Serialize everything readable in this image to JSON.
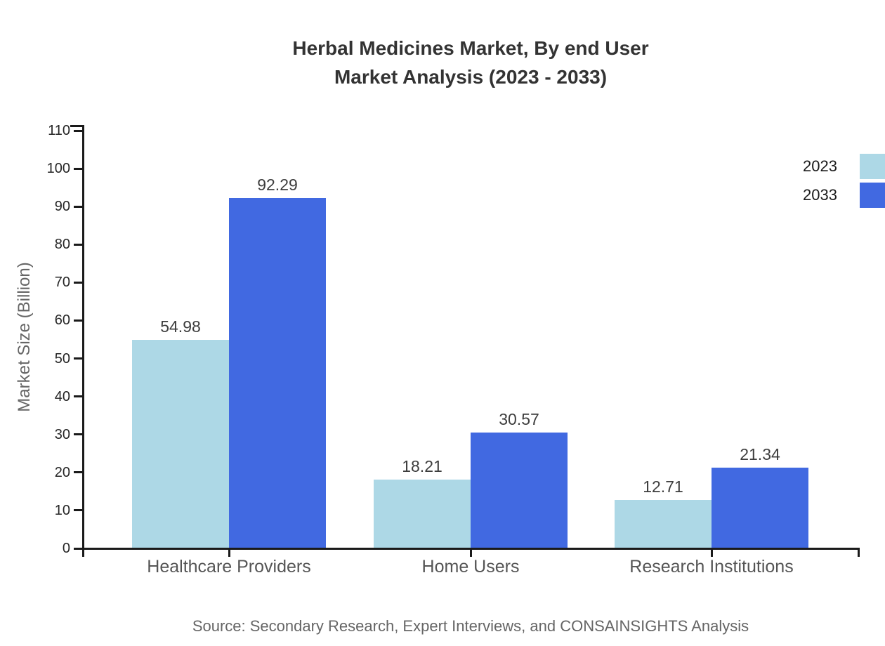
{
  "chart_data": {
    "type": "bar",
    "title_line1": "Herbal Medicines Market, By end User",
    "title_line2": "Market Analysis (2023 - 2033)",
    "ylabel": "Market Size (Billion)",
    "xlabel": "",
    "categories": [
      "Healthcare Providers",
      "Home Users",
      "Research Institutions"
    ],
    "series": [
      {
        "name": "2023",
        "color": "#ADD8E6",
        "values": [
          54.98,
          18.21,
          12.71
        ]
      },
      {
        "name": "2033",
        "color": "#4169E1",
        "values": [
          92.29,
          30.57,
          21.34
        ]
      }
    ],
    "ylim": [
      0,
      110
    ],
    "yticks": [
      0,
      10,
      20,
      30,
      40,
      50,
      60,
      70,
      80,
      90,
      100,
      110
    ],
    "grid": false,
    "legend_position": "right-edge",
    "value_labels_shown": true,
    "source": "Source: Secondary Research, Expert Interviews, and CONSAINSIGHTS Analysis"
  },
  "colors": {
    "background": "#ffffff",
    "title": "#333333",
    "axis": "#1a1a1a",
    "tick_label": "#262626",
    "category_label": "#555555",
    "y_axis_title": "#666666",
    "value_label": "#3d3d3d",
    "source_text": "#666666",
    "series_2023": "#ADD8E6",
    "series_2033": "#4169E1"
  }
}
